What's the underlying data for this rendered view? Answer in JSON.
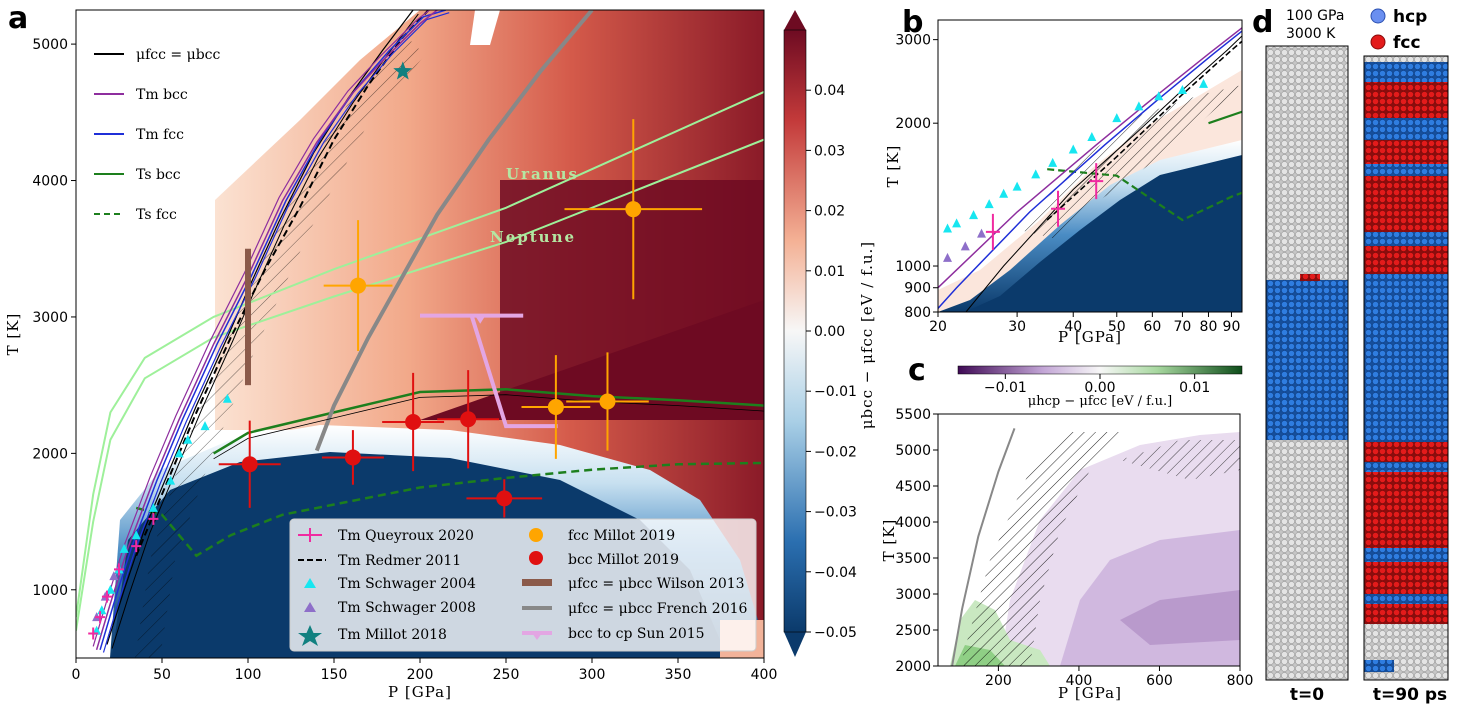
{
  "panels": {
    "a": "a",
    "b": "b",
    "c": "c",
    "d": "d"
  },
  "colors": {
    "cold": "#0b3a6b",
    "warm": "#6e0b22",
    "mid": "#f7f7f7",
    "purple": "#8e2e9e",
    "blue": "#1f2fd8",
    "green": "#1d7f1d",
    "lightgreen": "#9ef09a",
    "gray": "#888888",
    "brown": "#8b5a4a",
    "pink": "#e26fb9",
    "orange": "#ffa500",
    "red": "#e01010",
    "cyan": "#17e6f0",
    "violet": "#8e6fc9",
    "teal": "#118080",
    "hcp": "#1f6fd1",
    "fcc": "#dd1a1a"
  },
  "chart_data": [
    {
      "id": "a",
      "type": "scatter",
      "xlabel": "P [GPa]",
      "ylabel": "T [K]",
      "xlim": [
        0,
        400
      ],
      "ylim": [
        500,
        5250
      ],
      "xticks": [
        "0",
        "50",
        "100",
        "150",
        "200",
        "250",
        "300",
        "350",
        "400"
      ],
      "yticks": [
        "1000",
        "2000",
        "3000",
        "4000",
        "5000"
      ],
      "annotations": [
        "Uranus",
        "Neptune"
      ],
      "colorbar": {
        "label": "μbcc − μfcc [eV / f.u.]",
        "range": [
          -0.05,
          0.05
        ],
        "ticks": [
          "0.04",
          "0.03",
          "0.02",
          "0.01",
          "0.00",
          "−0.01",
          "−0.02",
          "−0.03",
          "−0.04",
          "−0.05"
        ]
      },
      "legend_top": [
        {
          "key": "mu_eq",
          "label": "μfcc = μbcc"
        },
        {
          "key": "tm_bcc",
          "label": "Tm bcc"
        },
        {
          "key": "tm_fcc",
          "label": "Tm fcc"
        },
        {
          "key": "ts_bcc",
          "label": "Ts bcc"
        },
        {
          "key": "ts_fcc",
          "label": "Ts fcc"
        }
      ],
      "legend_bottom": [
        {
          "key": "queyroux",
          "label": "Tm Queyroux 2020"
        },
        {
          "key": "redmer",
          "label": "Tm Redmer 2011"
        },
        {
          "key": "schwager04",
          "label": "Tm Schwager 2004"
        },
        {
          "key": "schwager08",
          "label": "Tm Schwager 2008"
        },
        {
          "key": "millot18",
          "label": "Tm Millot 2018"
        },
        {
          "key": "fcc_millot",
          "label": "fcc Millot 2019"
        },
        {
          "key": "bcc_millot",
          "label": "bcc Millot 2019"
        },
        {
          "key": "wilson",
          "label": "μfcc = μbcc Wilson 2013"
        },
        {
          "key": "french",
          "label": "μfcc = μbcc French 2016"
        },
        {
          "key": "sun",
          "label": "bcc to cp Sun 2015"
        }
      ],
      "series": {
        "fcc_millot": [
          {
            "P": 164,
            "T": 3230,
            "ep": 20,
            "eT": 480
          },
          {
            "P": 279,
            "T": 2340,
            "ep": 20,
            "eT": 380
          },
          {
            "P": 309,
            "T": 2380,
            "ep": 24,
            "eT": 360
          },
          {
            "P": 324,
            "T": 3790,
            "ep": 40,
            "eT": 660
          }
        ],
        "bcc_millot": [
          {
            "P": 101,
            "T": 1920,
            "ep": 18,
            "eT": 320
          },
          {
            "P": 161,
            "T": 1970,
            "ep": 18,
            "eT": 200
          },
          {
            "P": 196,
            "T": 2230,
            "ep": 18,
            "eT": 360
          },
          {
            "P": 228,
            "T": 2250,
            "ep": 18,
            "eT": 360
          },
          {
            "P": 249,
            "T": 1670,
            "ep": 22,
            "eT": 140
          }
        ],
        "millot18": [
          {
            "P": 190,
            "T": 4800
          }
        ],
        "wilson": {
          "P": 100,
          "T": [
            2500,
            3500
          ]
        },
        "melt_bcc": [
          [
            12,
            560
          ],
          [
            20,
            900
          ],
          [
            30,
            1300
          ],
          [
            45,
            1800
          ],
          [
            60,
            2250
          ],
          [
            80,
            2800
          ],
          [
            100,
            3300
          ],
          [
            120,
            3850
          ],
          [
            140,
            4280
          ],
          [
            160,
            4630
          ],
          [
            180,
            4900
          ],
          [
            200,
            5150
          ],
          [
            210,
            5250
          ]
        ],
        "melt_fcc": [
          [
            14,
            560
          ],
          [
            22,
            900
          ],
          [
            32,
            1300
          ],
          [
            47,
            1800
          ],
          [
            62,
            2250
          ],
          [
            82,
            2800
          ],
          [
            102,
            3300
          ],
          [
            122,
            3850
          ],
          [
            142,
            4300
          ],
          [
            162,
            4660
          ],
          [
            182,
            4950
          ],
          [
            202,
            5200
          ],
          [
            215,
            5250
          ]
        ],
        "mu_eq": [
          [
            18,
            600
          ],
          [
            28,
            1000
          ],
          [
            40,
            1450
          ],
          [
            55,
            1900
          ],
          [
            70,
            2350
          ],
          [
            88,
            2850
          ],
          [
            100,
            3200
          ],
          [
            118,
            3700
          ],
          [
            138,
            4200
          ],
          [
            158,
            4600
          ],
          [
            178,
            4950
          ],
          [
            196,
            5250
          ]
        ],
        "redmer": [
          [
            35,
            1250
          ],
          [
            50,
            1700
          ],
          [
            70,
            2300
          ],
          [
            90,
            2850
          ],
          [
            110,
            3350
          ],
          [
            130,
            3800
          ],
          [
            150,
            4300
          ],
          [
            170,
            4700
          ],
          [
            190,
            5050
          ],
          [
            205,
            5250
          ]
        ],
        "ts_bcc": [
          [
            80,
            2000
          ],
          [
            100,
            2150
          ],
          [
            150,
            2300
          ],
          [
            200,
            2450
          ],
          [
            250,
            2470
          ],
          [
            300,
            2420
          ],
          [
            350,
            2390
          ],
          [
            400,
            2350
          ]
        ],
        "ts_fcc": [
          [
            35,
            1600
          ],
          [
            50,
            1550
          ],
          [
            70,
            1250
          ],
          [
            90,
            1400
          ],
          [
            120,
            1550
          ],
          [
            160,
            1650
          ],
          [
            200,
            1750
          ],
          [
            250,
            1820
          ],
          [
            300,
            1880
          ],
          [
            350,
            1920
          ],
          [
            400,
            1930
          ]
        ],
        "light1": [
          [
            0,
            800
          ],
          [
            10,
            1700
          ],
          [
            20,
            2300
          ],
          [
            40,
            2700
          ],
          [
            80,
            3000
          ],
          [
            150,
            3350
          ],
          [
            250,
            3800
          ],
          [
            400,
            4650
          ]
        ],
        "light2": [
          [
            0,
            700
          ],
          [
            10,
            1500
          ],
          [
            20,
            2100
          ],
          [
            40,
            2550
          ],
          [
            80,
            2850
          ],
          [
            150,
            3150
          ],
          [
            250,
            3550
          ],
          [
            400,
            4300
          ]
        ],
        "french": [
          [
            140,
            2020
          ],
          [
            150,
            2350
          ],
          [
            170,
            2850
          ],
          [
            190,
            3300
          ],
          [
            210,
            3750
          ],
          [
            240,
            4300
          ],
          [
            270,
            4800
          ],
          [
            300,
            5250
          ]
        ],
        "sun": [
          [
            200,
            3010
          ],
          [
            260,
            3010
          ],
          [
            230,
            3010
          ],
          [
            250,
            2200
          ],
          [
            280,
            2200
          ]
        ],
        "schwager04": [
          [
            12,
            700
          ],
          [
            15,
            850
          ],
          [
            20,
            1000
          ],
          [
            25,
            1150
          ],
          [
            28,
            1300
          ],
          [
            35,
            1400
          ],
          [
            45,
            1600
          ],
          [
            55,
            1800
          ],
          [
            60,
            2000
          ],
          [
            65,
            2100
          ],
          [
            75,
            2200
          ],
          [
            88,
            2400
          ]
        ],
        "queyroux": [
          [
            10,
            680
          ],
          [
            14,
            800
          ],
          [
            18,
            950
          ],
          [
            25,
            1150
          ],
          [
            35,
            1320
          ],
          [
            45,
            1520
          ]
        ],
        "schwager08": [
          [
            12,
            800
          ],
          [
            17,
            950
          ],
          [
            22,
            1100
          ]
        ]
      }
    },
    {
      "id": "b",
      "type": "scatter",
      "xlabel": "P [GPa]",
      "ylabel": "T [K]",
      "xscale": "log",
      "yscale": "log",
      "xlim": [
        20,
        95
      ],
      "ylim": [
        800,
        3300
      ],
      "xticks": [
        "20",
        "30",
        "40",
        "50",
        "60",
        "70",
        "80",
        "90"
      ],
      "yticks": [
        "800",
        "900",
        "1000",
        "2000",
        "3000"
      ],
      "series": {
        "queyroux": [
          {
            "P": 26.5,
            "T": 1180
          },
          {
            "P": 37,
            "T": 1320
          },
          {
            "P": 45,
            "T": 1510
          }
        ],
        "schwager04": [
          [
            21,
            1200
          ],
          [
            22,
            1230
          ],
          [
            24,
            1280
          ],
          [
            26,
            1350
          ],
          [
            28,
            1420
          ],
          [
            30,
            1470
          ],
          [
            33,
            1560
          ],
          [
            36,
            1650
          ],
          [
            40,
            1760
          ],
          [
            44,
            1870
          ],
          [
            50,
            2050
          ],
          [
            56,
            2170
          ],
          [
            62,
            2280
          ],
          [
            70,
            2350
          ],
          [
            78,
            2420
          ]
        ],
        "schwager08": [
          [
            21,
            1040
          ],
          [
            23,
            1100
          ],
          [
            25,
            1170
          ]
        ]
      }
    },
    {
      "id": "c",
      "type": "heatmap",
      "xlabel": "P [GPa]",
      "ylabel": "T [K]",
      "xlim": [
        50,
        800
      ],
      "ylim": [
        2000,
        5500
      ],
      "xticks": [
        "200",
        "400",
        "600",
        "800"
      ],
      "yticks": [
        "2000",
        "2500",
        "3000",
        "3500",
        "4000",
        "4500",
        "5000",
        "5500"
      ],
      "colorbar": {
        "label": "μhcp − μfcc [eV / f.u.]",
        "ticks": [
          "−0.01",
          "0.00",
          "0.01"
        ]
      }
    }
  ],
  "panel_d": {
    "conditions": [
      "100 GPa",
      "3000 K"
    ],
    "legend": [
      {
        "key": "hcp",
        "label": "hcp"
      },
      {
        "key": "fcc",
        "label": "fcc"
      }
    ],
    "labels": [
      "t=0",
      "t=90 ps"
    ]
  }
}
